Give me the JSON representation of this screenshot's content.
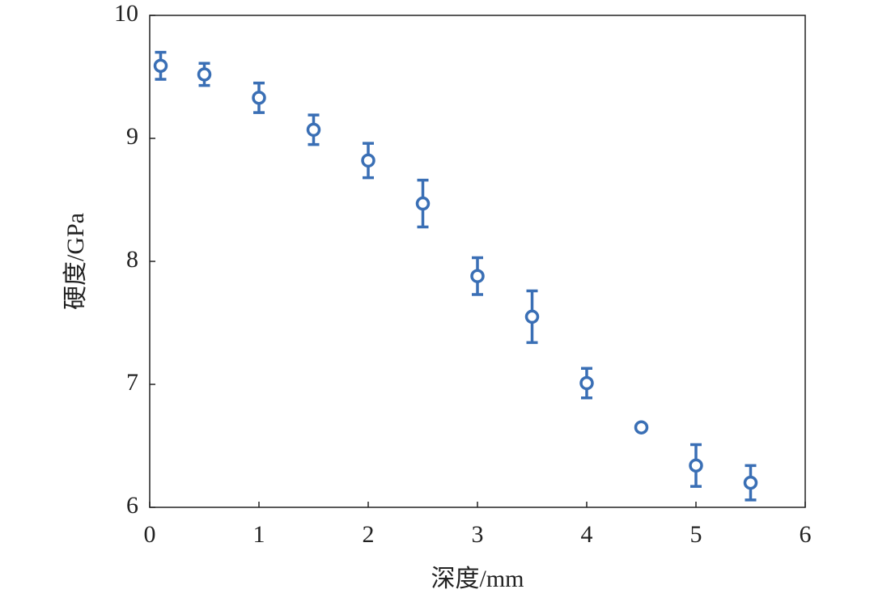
{
  "chart_data": {
    "type": "scatter",
    "x_label": "深度/mm",
    "y_label": "硬度/GPa",
    "x": [
      0.1,
      0.5,
      1,
      1.5,
      2,
      2.5,
      3,
      3.5,
      4,
      4.5,
      5,
      5.5
    ],
    "values": [
      9.59,
      9.52,
      9.33,
      9.07,
      8.82,
      8.47,
      7.88,
      7.55,
      7.01,
      6.65,
      6.34,
      6.2
    ],
    "errors": [
      0.11,
      0.09,
      0.12,
      0.12,
      0.14,
      0.19,
      0.15,
      0.21,
      0.12,
      0.01,
      0.17,
      0.14
    ],
    "color": "#3a6fb5",
    "xlim": [
      0,
      6
    ],
    "ylim": [
      6,
      10
    ],
    "xticks": [
      0,
      1,
      2,
      3,
      4,
      5,
      6
    ],
    "yticks": [
      6,
      7,
      8,
      9,
      10
    ]
  }
}
